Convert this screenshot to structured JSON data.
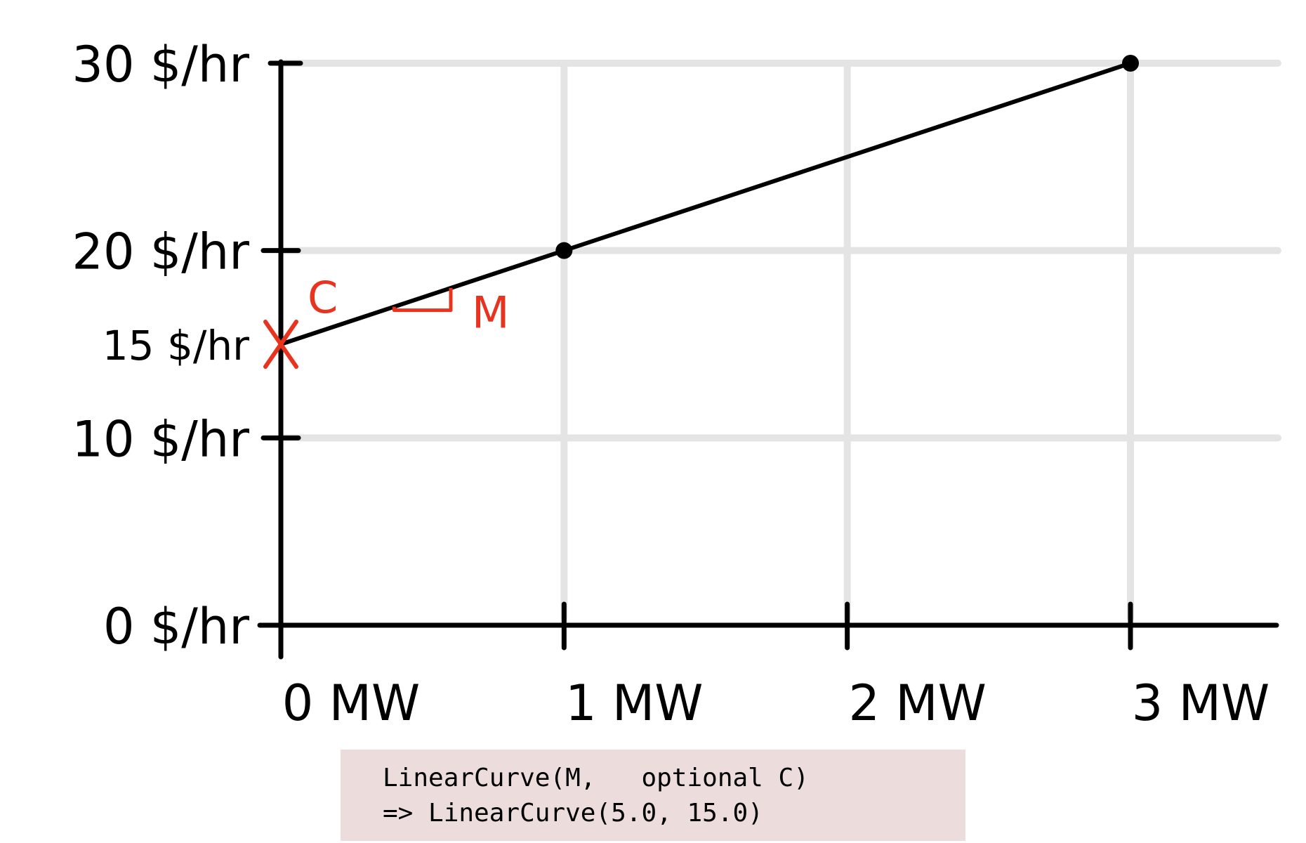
{
  "chart_data": {
    "type": "line",
    "x": [
      0,
      1,
      3
    ],
    "y": [
      15,
      20,
      30
    ],
    "xlim": [
      0,
      3.5
    ],
    "ylim": [
      0,
      30
    ],
    "xticks": [
      "0 MW",
      "1 MW",
      "2 MW",
      "3 MW"
    ],
    "yticks": [
      "0 $/hr",
      "10 $/hr",
      "15 $/hr",
      "20 $/hr",
      "30 $/hr"
    ],
    "grid": true,
    "annotations": {
      "intercept_label": "C",
      "slope_label": "M"
    }
  },
  "code": {
    "line1": "LinearCurve(M,   optional C)",
    "line2": "=> LinearCurve(5.0, 15.0)"
  },
  "colors": {
    "line": "#000000",
    "grid": "#e4e4e4",
    "annotation": "#e8331f",
    "code_bg": "#ecdcdb"
  }
}
